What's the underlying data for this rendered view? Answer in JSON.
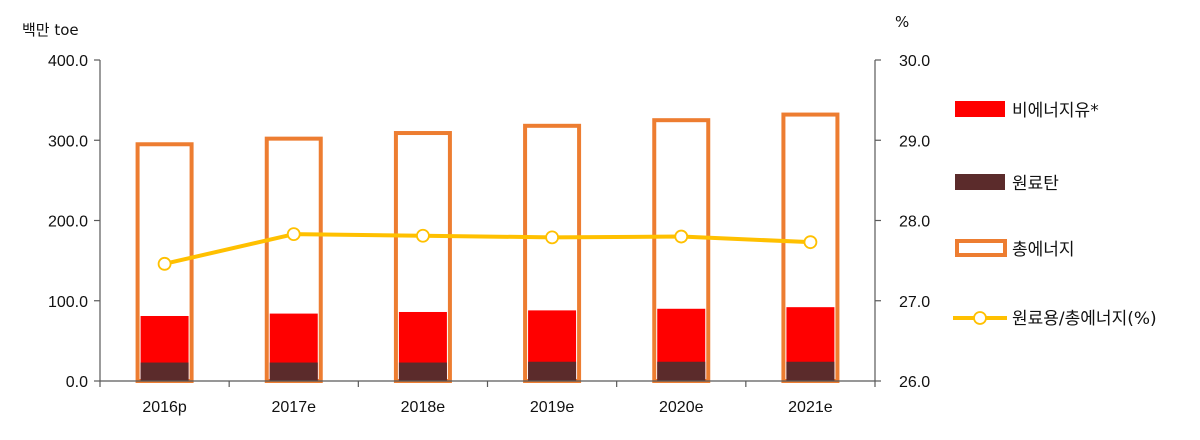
{
  "chart_data": {
    "type": "bar",
    "categories": [
      "2016p",
      "2017e",
      "2018e",
      "2019e",
      "2020e",
      "2021e"
    ],
    "y_left": {
      "unit_label": "백만 toe",
      "ylim": [
        0,
        400
      ],
      "ticks": [
        "0.0",
        "100.0",
        "200.0",
        "300.0",
        "400.0"
      ]
    },
    "y_right": {
      "unit_label": "%",
      "ylim": [
        26,
        30
      ],
      "ticks": [
        "26.0",
        "27.0",
        "28.0",
        "29.0",
        "30.0"
      ]
    },
    "series": [
      {
        "name": "비에너지유*",
        "kind": "bar",
        "axis": "left",
        "color": "#ff0000",
        "values": [
          81,
          84,
          86,
          88,
          90,
          92
        ]
      },
      {
        "name": "원료탄",
        "kind": "bar",
        "axis": "left",
        "color": "#5b2b2b",
        "values": [
          23,
          23,
          23,
          24,
          24,
          24
        ]
      },
      {
        "name": "총에너지",
        "kind": "bar-outline",
        "axis": "left",
        "color": "#ed7d31",
        "values": [
          295,
          302,
          309,
          318,
          325,
          332
        ]
      },
      {
        "name": "원료용/총에너지(%)",
        "kind": "line",
        "axis": "right",
        "color": "#ffc000",
        "values": [
          27.46,
          27.83,
          27.81,
          27.79,
          27.8,
          27.73
        ]
      }
    ],
    "grid": false,
    "legend_position": "right"
  }
}
